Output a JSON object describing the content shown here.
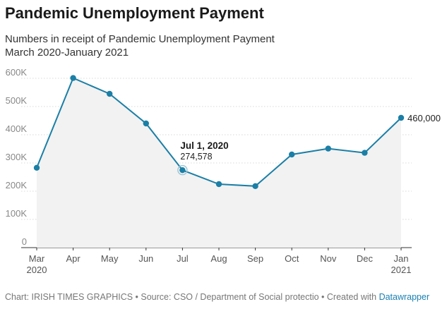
{
  "title": "Pandemic Unemployment Payment",
  "subtitle_lines": [
    "Numbers in receipt of Pandemic Unemployment Payment",
    "March 2020-January 2021"
  ],
  "footer": {
    "prefix": "Chart: IRISH TIMES GRAPHICS • Source: CSO / Department of Social protectio • Created with",
    "link": "Datawrapper"
  },
  "colors": {
    "line": "#1b7fa6",
    "marker": "#1b7fa6",
    "area": "#f2f2f2",
    "grid": "#d8d8d8",
    "axis_text": "#888888"
  },
  "chart_data": {
    "type": "line",
    "x": [
      "Mar",
      "Apr",
      "May",
      "Jun",
      "Jul",
      "Aug",
      "Sep",
      "Oct",
      "Nov",
      "Dec",
      "Jan"
    ],
    "x_sublabels": [
      "2020",
      "",
      "",
      "",
      "",
      "",
      "",
      "",
      "",
      "",
      "2021"
    ],
    "series": [
      {
        "values": [
          283000,
          601000,
          545000,
          440000,
          274578,
          225000,
          218000,
          330000,
          351000,
          336000,
          460000
        ]
      }
    ],
    "yticks": [
      0,
      100000,
      200000,
      300000,
      400000,
      500000,
      600000
    ],
    "ytick_labels": [
      "0",
      "100K",
      "200K",
      "300K",
      "400K",
      "500K",
      "600K"
    ],
    "ylim": [
      0,
      650000
    ],
    "grid": true,
    "annotations": [
      {
        "index": 4,
        "title": "Jul 1, 2020",
        "value_label": "274,578"
      },
      {
        "index": 10,
        "value_label": "460,000"
      }
    ]
  }
}
